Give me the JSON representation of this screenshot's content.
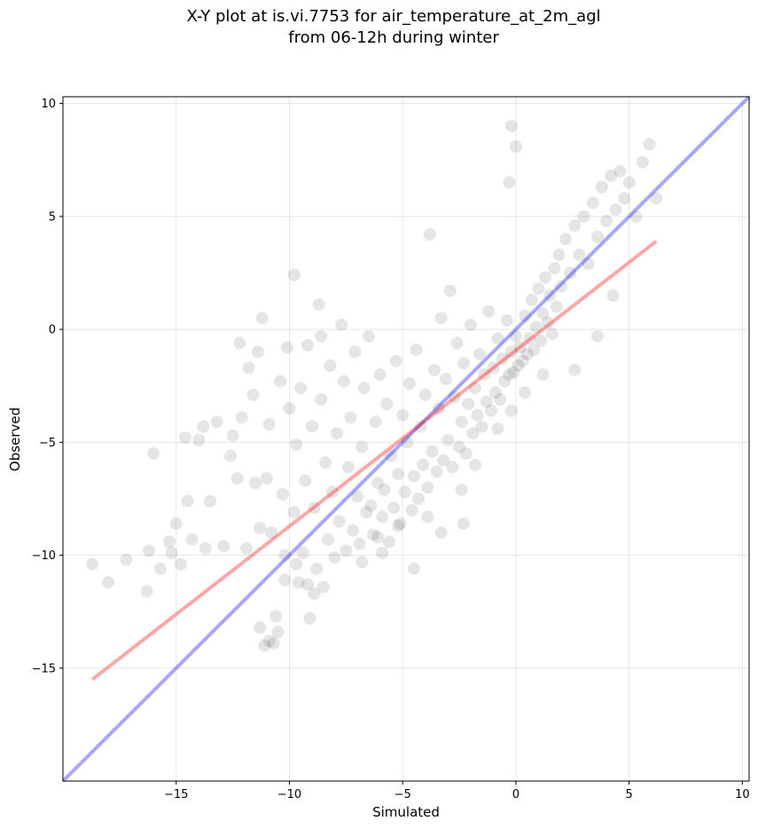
{
  "chart_data": {
    "type": "scatter",
    "title_line1": "X-Y plot at is.vi.7753 for air_temperature_at_2m_agl",
    "title_line2": "from 06-12h during winter",
    "xlabel": "Simulated",
    "ylabel": "Observed",
    "xlim": [
      -20,
      10.3
    ],
    "ylim": [
      -20,
      10.3
    ],
    "xticks": [
      -15,
      -10,
      -5,
      0,
      5,
      10
    ],
    "yticks": [
      -15,
      -10,
      -5,
      0,
      5,
      10
    ],
    "xtick_labels": [
      "−15",
      "−10",
      "−5",
      "0",
      "5",
      "10"
    ],
    "ytick_labels": [
      "−15",
      "−10",
      "−5",
      "0",
      "5",
      "10"
    ],
    "grid": true,
    "marker_color": "#000000",
    "marker_alpha": 0.1,
    "identity_line": {
      "x": [
        -20,
        10.3
      ],
      "y": [
        -20,
        10.3
      ],
      "color": "#0000ff",
      "alpha": 0.35
    },
    "fit_line": {
      "x": [
        -18.7,
        6.2
      ],
      "y": [
        -15.5,
        3.9
      ],
      "color": "#ff0000",
      "alpha": 0.35
    },
    "points": [
      [
        -18.7,
        -10.4
      ],
      [
        -18.0,
        -11.2
      ],
      [
        -17.2,
        -10.2
      ],
      [
        -16.3,
        -11.6
      ],
      [
        -16.2,
        -9.8
      ],
      [
        -16.0,
        -5.5
      ],
      [
        -15.7,
        -10.6
      ],
      [
        -15.2,
        -9.9
      ],
      [
        -15.0,
        -8.6
      ],
      [
        -14.8,
        -10.4
      ],
      [
        -14.6,
        -4.8
      ],
      [
        -14.5,
        -7.6
      ],
      [
        -14.0,
        -4.9
      ],
      [
        -13.7,
        -9.7
      ],
      [
        -13.5,
        -7.6
      ],
      [
        -13.2,
        -4.1
      ],
      [
        -12.9,
        -9.6
      ],
      [
        -12.6,
        -5.6
      ],
      [
        -12.3,
        -6.6
      ],
      [
        -12.1,
        -3.9
      ],
      [
        -11.9,
        -9.7
      ],
      [
        -11.8,
        -1.7
      ],
      [
        -11.6,
        -2.9
      ],
      [
        -11.5,
        -6.8
      ],
      [
        -11.4,
        -1.0
      ],
      [
        -11.3,
        -8.8
      ],
      [
        -11.0,
        -6.6
      ],
      [
        -10.9,
        -4.2
      ],
      [
        -10.8,
        -9.0
      ],
      [
        -10.6,
        -12.7
      ],
      [
        -10.5,
        -13.4
      ],
      [
        -10.4,
        -2.3
      ],
      [
        -10.3,
        -7.3
      ],
      [
        -10.2,
        -10.0
      ],
      [
        -10.1,
        -0.8
      ],
      [
        -10.0,
        -3.5
      ],
      [
        -9.8,
        -8.1
      ],
      [
        -9.7,
        -5.1
      ],
      [
        -9.6,
        -11.2
      ],
      [
        -9.5,
        -2.6
      ],
      [
        -9.4,
        -9.9
      ],
      [
        -9.3,
        -6.7
      ],
      [
        -9.2,
        -0.7
      ],
      [
        -9.1,
        -12.8
      ],
      [
        -9.0,
        -4.3
      ],
      [
        -8.9,
        -7.9
      ],
      [
        -8.8,
        -10.6
      ],
      [
        -8.7,
        1.1
      ],
      [
        -8.6,
        -3.1
      ],
      [
        -8.5,
        -11.4
      ],
      [
        -8.4,
        -5.9
      ],
      [
        -8.3,
        -9.3
      ],
      [
        -8.2,
        -1.6
      ],
      [
        -8.1,
        -7.2
      ],
      [
        -8.0,
        -10.1
      ],
      [
        -7.9,
        -4.6
      ],
      [
        -7.8,
        -8.5
      ],
      [
        -7.7,
        0.2
      ],
      [
        -7.6,
        -2.3
      ],
      [
        -7.5,
        -9.8
      ],
      [
        -7.4,
        -6.1
      ],
      [
        -7.3,
        -3.9
      ],
      [
        -7.2,
        -8.9
      ],
      [
        -7.1,
        -1.0
      ],
      [
        -7.0,
        -7.4
      ],
      [
        -6.9,
        -9.5
      ],
      [
        -6.8,
        -5.2
      ],
      [
        -6.7,
        -2.6
      ],
      [
        -6.6,
        -8.1
      ],
      [
        -6.5,
        -0.3
      ],
      [
        -6.4,
        -7.8
      ],
      [
        -6.3,
        -9.1
      ],
      [
        -6.2,
        -4.1
      ],
      [
        -6.1,
        -6.8
      ],
      [
        -6.0,
        -2.0
      ],
      [
        -5.9,
        -8.3
      ],
      [
        -5.8,
        -7.1
      ],
      [
        -5.7,
        -3.3
      ],
      [
        -5.6,
        -9.4
      ],
      [
        -5.5,
        -5.6
      ],
      [
        -5.4,
        -7.9
      ],
      [
        -5.3,
        -1.4
      ],
      [
        -5.2,
        -6.4
      ],
      [
        -5.1,
        -8.6
      ],
      [
        -5.0,
        -3.8
      ],
      [
        -4.9,
        -7.2
      ],
      [
        -4.8,
        -5.0
      ],
      [
        -4.7,
        -2.4
      ],
      [
        -4.6,
        -8.0
      ],
      [
        -4.5,
        -6.5
      ],
      [
        -4.4,
        -0.9
      ],
      [
        -4.3,
        -7.5
      ],
      [
        -4.2,
        -4.3
      ],
      [
        -4.1,
        -6.0
      ],
      [
        -4.0,
        -2.9
      ],
      [
        -3.9,
        -7.0
      ],
      [
        -3.8,
        4.2
      ],
      [
        -3.7,
        -5.4
      ],
      [
        -3.6,
        -1.8
      ],
      [
        -3.5,
        -6.3
      ],
      [
        -3.4,
        -3.5
      ],
      [
        -3.3,
        0.5
      ],
      [
        -3.2,
        -5.8
      ],
      [
        -3.1,
        -2.2
      ],
      [
        -3.0,
        -4.9
      ],
      [
        -2.9,
        1.7
      ],
      [
        -2.8,
        -6.1
      ],
      [
        -2.7,
        -3.0
      ],
      [
        -2.6,
        -0.6
      ],
      [
        -2.5,
        -5.2
      ],
      [
        -2.4,
        -4.1
      ],
      [
        -2.3,
        -1.5
      ],
      [
        -2.2,
        -5.5
      ],
      [
        -2.1,
        -3.3
      ],
      [
        -2.0,
        0.2
      ],
      [
        -1.9,
        -4.6
      ],
      [
        -1.8,
        -2.6
      ],
      [
        -1.7,
        -3.8
      ],
      [
        -1.6,
        -1.1
      ],
      [
        -1.5,
        -4.3
      ],
      [
        -1.4,
        -2.0
      ],
      [
        -1.3,
        -3.2
      ],
      [
        -1.2,
        0.8
      ],
      [
        -1.1,
        -3.6
      ],
      [
        -1.0,
        -1.7
      ],
      [
        -0.9,
        -2.8
      ],
      [
        -0.8,
        -0.4
      ],
      [
        -0.7,
        -3.1
      ],
      [
        -0.6,
        -1.3
      ],
      [
        -0.5,
        -2.3
      ],
      [
        -0.4,
        0.4
      ],
      [
        -0.3,
        -2.0
      ],
      [
        -0.2,
        -1.0
      ],
      [
        -0.1,
        -1.9
      ],
      [
        0.0,
        -0.3
      ],
      [
        0.1,
        -1.6
      ],
      [
        0.2,
        -0.8
      ],
      [
        0.3,
        -1.4
      ],
      [
        0.4,
        0.6
      ],
      [
        0.5,
        -1.1
      ],
      [
        0.6,
        -0.4
      ],
      [
        0.7,
        1.3
      ],
      [
        0.8,
        -0.9
      ],
      [
        0.9,
        0.1
      ],
      [
        1.0,
        1.8
      ],
      [
        1.1,
        -0.5
      ],
      [
        1.2,
        0.7
      ],
      [
        1.3,
        2.3
      ],
      [
        1.4,
        0.3
      ],
      [
        1.5,
        1.5
      ],
      [
        1.6,
        -0.2
      ],
      [
        1.7,
        2.7
      ],
      [
        1.8,
        1.0
      ],
      [
        1.9,
        3.3
      ],
      [
        2.0,
        1.9
      ],
      [
        2.2,
        4.0
      ],
      [
        2.4,
        2.5
      ],
      [
        2.6,
        4.6
      ],
      [
        2.8,
        3.3
      ],
      [
        3.0,
        5.0
      ],
      [
        3.2,
        2.9
      ],
      [
        3.4,
        5.6
      ],
      [
        3.6,
        4.1
      ],
      [
        3.8,
        6.3
      ],
      [
        4.0,
        4.8
      ],
      [
        4.2,
        6.8
      ],
      [
        4.4,
        5.3
      ],
      [
        4.6,
        7.0
      ],
      [
        4.8,
        5.8
      ],
      [
        5.0,
        6.5
      ],
      [
        5.3,
        5.0
      ],
      [
        5.6,
        7.4
      ],
      [
        5.9,
        8.2
      ],
      [
        6.2,
        5.8
      ],
      [
        -0.2,
        9.0
      ],
      [
        0.0,
        8.1
      ],
      [
        -0.3,
        6.5
      ],
      [
        -4.5,
        -10.6
      ],
      [
        -5.9,
        -9.9
      ],
      [
        -6.8,
        -10.3
      ],
      [
        -3.3,
        -9.0
      ],
      [
        -2.3,
        -8.6
      ],
      [
        -8.6,
        -0.3
      ],
      [
        -9.8,
        2.4
      ],
      [
        -12.2,
        -0.6
      ],
      [
        -11.2,
        0.5
      ],
      [
        -12.5,
        -4.7
      ],
      [
        -13.8,
        -4.3
      ],
      [
        -14.3,
        -9.3
      ],
      [
        -15.3,
        -9.4
      ],
      [
        -11.1,
        -14.0
      ],
      [
        -10.9,
        -13.8
      ],
      [
        -11.3,
        -13.2
      ],
      [
        -10.7,
        -13.9
      ],
      [
        -8.9,
        -11.7
      ],
      [
        -9.2,
        -11.3
      ],
      [
        -9.7,
        -10.4
      ],
      [
        -10.2,
        -11.1
      ],
      [
        -1.8,
        -6.0
      ],
      [
        -0.8,
        -4.4
      ],
      [
        -0.2,
        -3.6
      ],
      [
        0.4,
        -2.8
      ],
      [
        1.2,
        -2.0
      ],
      [
        2.6,
        -1.8
      ],
      [
        3.6,
        -0.3
      ],
      [
        4.3,
        1.5
      ],
      [
        -2.4,
        -7.1
      ],
      [
        -3.9,
        -8.3
      ],
      [
        -5.2,
        -8.7
      ],
      [
        -6.1,
        -9.2
      ]
    ]
  }
}
